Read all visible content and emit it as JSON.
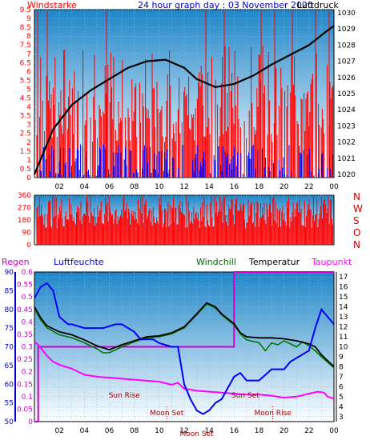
{
  "header": {
    "title": "24 hour graph day : 03 November 2020",
    "left_label": "Windstarke",
    "right_label": "Luftdruck"
  },
  "colors": {
    "wind_speed": "#ff0000",
    "wind_gust_blue": "#0000ff",
    "pressure": "#000000",
    "direction": "#ff0000",
    "humidity": "#0000ff",
    "rain": "#cc00cc",
    "dewpoint": "#ff00ff",
    "windchill": "#007700",
    "temperature": "#000000",
    "annotation": "#990000",
    "bg_top": "#1f86c8",
    "bg_bottom": "#ffffff",
    "grid": "#7fc0ea"
  },
  "chart_data": [
    {
      "type": "line",
      "title": "24 hour graph day : 03 November 2020",
      "x_ticks": [
        "02",
        "04",
        "06",
        "08",
        "10",
        "12",
        "14",
        "16",
        "18",
        "20",
        "22",
        "00"
      ],
      "y_left_label": "Windstarke",
      "y_left_ticks": [
        "0",
        "0.5",
        "1",
        "1.5",
        "2",
        "2.5",
        "3",
        "3.5",
        "4",
        "4.5",
        "5",
        "5.5",
        "6",
        "6.5",
        "7",
        "7.5",
        "8",
        "8.5",
        "9",
        "9.5"
      ],
      "ylim_left": [
        0,
        9.5
      ],
      "y_right_label": "Luftdruck",
      "y_right_ticks": [
        "1020",
        "1021",
        "1022",
        "1023",
        "1024",
        "1025",
        "1026",
        "1027",
        "1028",
        "1029",
        "1030"
      ],
      "ylim_right": [
        1019.8,
        1030.2
      ],
      "series": [
        {
          "name": "Luftdruck",
          "x": [
            0.0,
            1.5,
            3.0,
            4.5,
            6.0,
            7.5,
            9.0,
            10.5,
            12.0,
            13.0,
            14.5,
            16.0,
            17.5,
            19.0,
            20.5,
            22.0,
            23.3,
            24.0
          ],
          "y": [
            1020.0,
            1022.8,
            1024.3,
            1025.2,
            1025.9,
            1026.6,
            1027.0,
            1027.1,
            1026.6,
            1025.9,
            1025.4,
            1025.6,
            1026.1,
            1026.8,
            1027.4,
            1028.0,
            1028.8,
            1029.2
          ]
        }
      ]
    },
    {
      "type": "bar",
      "y_ticks": [
        "0",
        "90",
        "180",
        "270",
        "360"
      ],
      "ylim": [
        0,
        360
      ],
      "right_labels": [
        "N",
        "W",
        "S",
        "O",
        "N"
      ]
    },
    {
      "type": "line",
      "x_ticks": [
        "02",
        "04",
        "06",
        "08",
        "10",
        "12",
        "14",
        "16",
        "18",
        "20",
        "22",
        "00"
      ],
      "legend": [
        "Regen",
        "Luftfeuchte",
        "Windchill",
        "Temperatur",
        "Taupunkt"
      ],
      "y_rain_ticks": [
        "0",
        "0.05",
        "0.1",
        "0.15",
        "0.2",
        "0.25",
        "0.3",
        "0.35",
        "0.4",
        "0.45",
        "0.5",
        "0.55",
        "0.6"
      ],
      "ylim_rain": [
        0,
        0.6
      ],
      "y_humidity_ticks": [
        "50",
        "55",
        "60",
        "65",
        "70",
        "75",
        "80",
        "85",
        "90"
      ],
      "ylim_humidity": [
        50,
        90
      ],
      "y_temp_ticks": [
        "3",
        "4",
        "5",
        "6",
        "7",
        "8",
        "9",
        "10",
        "11",
        "12",
        "13",
        "14",
        "15",
        "16",
        "17"
      ],
      "ylim_temp": [
        2.5,
        17.5
      ],
      "series": [
        {
          "name": "Regen",
          "x": [
            0.0,
            0.3,
            0.3,
            16.0,
            16.0,
            24.0
          ],
          "y": [
            0.0,
            0.0,
            0.3,
            0.3,
            0.6,
            0.6
          ]
        },
        {
          "name": "Luftfeuchte",
          "x": [
            0.0,
            0.5,
            1.0,
            1.5,
            2.0,
            2.7,
            3.0,
            4.0,
            5.5,
            6.5,
            7.0,
            8.0,
            8.5,
            9.5,
            10.0,
            11.0,
            11.5,
            12.0,
            12.5,
            13.0,
            13.5,
            14.0,
            14.5,
            15.0,
            15.5,
            16.0,
            16.5,
            17.0,
            18.0,
            19.0,
            20.0,
            20.5,
            21.0,
            21.5,
            22.0,
            22.5,
            23.0,
            23.5,
            24.0
          ],
          "y": [
            83,
            86,
            87,
            85,
            78,
            76,
            76,
            75,
            75,
            76,
            76,
            74,
            72,
            72,
            71,
            70,
            70,
            60,
            56,
            53,
            52,
            53,
            55,
            56,
            59,
            62,
            63,
            61,
            61,
            64,
            64,
            66,
            67,
            68,
            69,
            75,
            80,
            78,
            76
          ]
        },
        {
          "name": "Temperatur",
          "x": [
            0.0,
            0.5,
            1.0,
            2.0,
            3.0,
            4.0,
            5.0,
            6.0,
            7.0,
            8.0,
            9.0,
            10.0,
            11.0,
            12.0,
            13.0,
            13.8,
            14.5,
            15.0,
            16.0,
            16.5,
            17.0,
            18.0,
            19.0,
            20.0,
            21.0,
            22.0,
            22.5,
            23.0,
            24.0
          ],
          "y": [
            14.0,
            12.9,
            12.1,
            11.5,
            11.2,
            10.7,
            10.1,
            9.7,
            10.2,
            10.6,
            11.0,
            11.1,
            11.4,
            12.0,
            13.3,
            14.4,
            14.0,
            13.3,
            12.3,
            11.4,
            11.0,
            10.9,
            10.9,
            10.8,
            10.6,
            10.3,
            10.0,
            9.2,
            8.0
          ]
        },
        {
          "name": "Windchill",
          "x": [
            0.0,
            0.5,
            1.0,
            2.0,
            3.0,
            4.0,
            5.0,
            5.5,
            6.0,
            7.0,
            8.0,
            9.0,
            10.0,
            11.0,
            12.0,
            13.0,
            13.8,
            14.5,
            15.0,
            16.0,
            16.5,
            17.0,
            18.0,
            18.5,
            19.0,
            19.5,
            20.0,
            21.0,
            21.5,
            22.0,
            22.5,
            23.0,
            24.0
          ],
          "y": [
            13.8,
            12.7,
            11.9,
            11.2,
            10.9,
            10.4,
            9.8,
            9.4,
            9.4,
            10.0,
            10.5,
            10.9,
            11.0,
            11.3,
            11.9,
            13.2,
            14.3,
            13.9,
            13.2,
            12.2,
            11.3,
            10.7,
            10.4,
            9.6,
            10.4,
            10.2,
            10.6,
            10.0,
            10.5,
            10.1,
            9.6,
            9.0,
            7.9
          ]
        },
        {
          "name": "Taupunkt",
          "x": [
            0.0,
            0.3,
            1.0,
            1.5,
            2.0,
            3.0,
            4.0,
            5.0,
            6.0,
            7.0,
            8.0,
            9.0,
            10.0,
            11.0,
            11.5,
            12.0,
            12.5,
            13.0,
            14.0,
            15.0,
            16.0,
            17.0,
            18.0,
            19.0,
            20.0,
            21.0,
            22.0,
            22.7,
            23.2,
            23.5,
            24.0
          ],
          "y": [
            10.5,
            10.2,
            9.1,
            8.5,
            8.2,
            7.8,
            7.2,
            7.0,
            6.9,
            6.8,
            6.7,
            6.6,
            6.5,
            6.2,
            6.4,
            5.8,
            5.7,
            5.6,
            5.5,
            5.4,
            5.3,
            5.2,
            5.2,
            5.1,
            4.9,
            5.0,
            5.3,
            5.5,
            5.4,
            5.0,
            4.8
          ]
        }
      ],
      "annotations": [
        {
          "label": "Sun Rise",
          "hour": 7.2
        },
        {
          "label": "Moon Set",
          "hour": 10.6
        },
        {
          "label": "Sun Set",
          "hour": 16.9
        },
        {
          "label": "Moon Rise",
          "hour": 19.1
        },
        {
          "label": "Moon Set",
          "hour": 13.0
        }
      ]
    }
  ]
}
